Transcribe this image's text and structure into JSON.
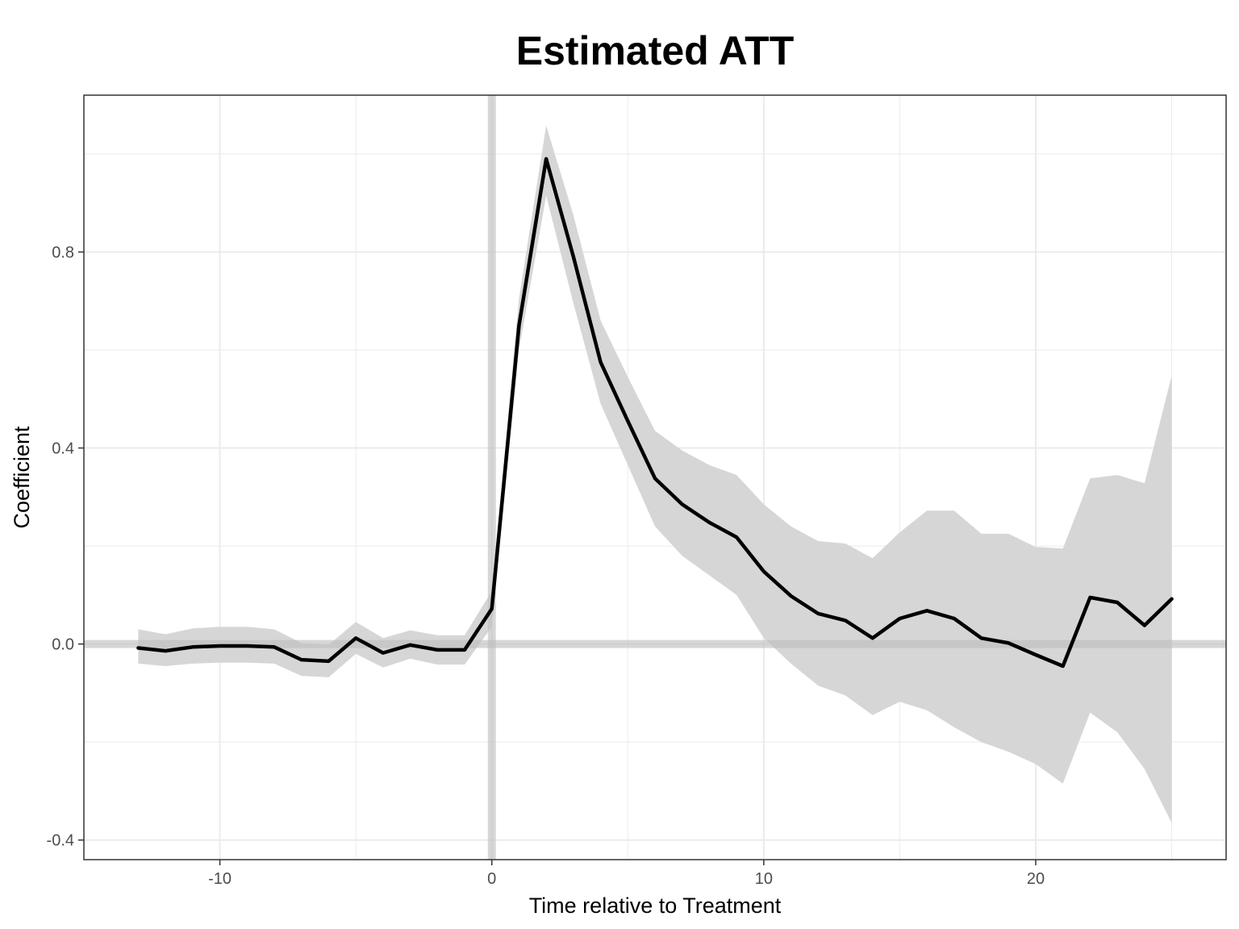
{
  "chart_data": {
    "type": "line",
    "title": "Estimated ATT",
    "xlabel": "Time relative to Treatment",
    "ylabel": "Coefficient",
    "xlim": [
      -15,
      27
    ],
    "ylim": [
      -0.44,
      1.12
    ],
    "x_ticks": [
      -10,
      0,
      10,
      20
    ],
    "x_tick_labels": [
      "-10",
      "0",
      "10",
      "20"
    ],
    "y_ticks": [
      -0.4,
      0.0,
      0.4,
      0.8
    ],
    "y_tick_labels": [
      "-0.4",
      "0.0",
      "0.4",
      "0.8"
    ],
    "grid": true,
    "reference_lines": {
      "x": 0,
      "y": 0
    },
    "colors": {
      "line": "#000000",
      "ribbon": "#d6d6d6",
      "reference": "#bdbdbd",
      "grid": "#ebebeb",
      "panel_border": "#333333"
    },
    "series": [
      {
        "x": [
          -13,
          -12,
          -11,
          -10,
          -9,
          -8,
          -7,
          -6,
          -5,
          -4,
          -3,
          -2,
          -1,
          0,
          1,
          2,
          3,
          4,
          5,
          6,
          7,
          8,
          9,
          10,
          11,
          12,
          13,
          14,
          15,
          16,
          17,
          18,
          19,
          20,
          21,
          22,
          23,
          24,
          25
        ],
        "y": [
          -0.008,
          -0.014,
          -0.006,
          -0.004,
          -0.004,
          -0.006,
          -0.032,
          -0.035,
          0.012,
          -0.018,
          -0.002,
          -0.012,
          -0.012,
          0.072,
          0.65,
          0.99,
          0.79,
          0.575,
          0.455,
          0.338,
          0.285,
          0.248,
          0.218,
          0.148,
          0.098,
          0.062,
          0.048,
          0.012,
          0.052,
          0.068,
          0.052,
          0.012,
          0.002,
          -0.022,
          -0.045,
          0.095,
          0.085,
          0.038,
          0.092
        ],
        "lower": [
          -0.04,
          -0.045,
          -0.04,
          -0.038,
          -0.038,
          -0.04,
          -0.065,
          -0.068,
          -0.02,
          -0.048,
          -0.03,
          -0.042,
          -0.042,
          0.035,
          0.6,
          0.915,
          0.695,
          0.49,
          0.365,
          0.24,
          0.18,
          0.14,
          0.1,
          0.012,
          -0.04,
          -0.085,
          -0.105,
          -0.145,
          -0.118,
          -0.135,
          -0.17,
          -0.2,
          -0.22,
          -0.245,
          -0.285,
          -0.14,
          -0.18,
          -0.255,
          -0.365
        ],
        "upper": [
          0.03,
          0.02,
          0.032,
          0.035,
          0.035,
          0.03,
          0.002,
          -0.002,
          0.045,
          0.012,
          0.028,
          0.018,
          0.018,
          0.108,
          0.705,
          1.058,
          0.875,
          0.66,
          0.545,
          0.435,
          0.395,
          0.365,
          0.345,
          0.285,
          0.24,
          0.21,
          0.205,
          0.175,
          0.228,
          0.272,
          0.272,
          0.225,
          0.225,
          0.198,
          0.195,
          0.338,
          0.345,
          0.328,
          0.548
        ]
      }
    ]
  }
}
